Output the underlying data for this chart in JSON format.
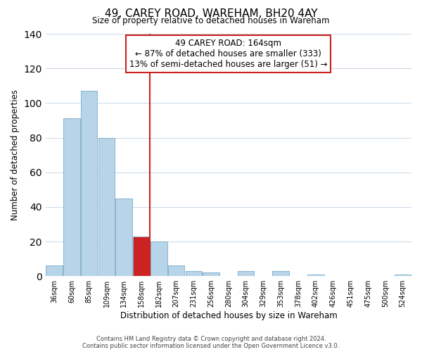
{
  "title": "49, CAREY ROAD, WAREHAM, BH20 4AY",
  "subtitle": "Size of property relative to detached houses in Wareham",
  "xlabel": "Distribution of detached houses by size in Wareham",
  "ylabel": "Number of detached properties",
  "bar_labels": [
    "36sqm",
    "60sqm",
    "85sqm",
    "109sqm",
    "134sqm",
    "158sqm",
    "182sqm",
    "207sqm",
    "231sqm",
    "256sqm",
    "280sqm",
    "304sqm",
    "329sqm",
    "353sqm",
    "378sqm",
    "402sqm",
    "426sqm",
    "451sqm",
    "475sqm",
    "500sqm",
    "524sqm"
  ],
  "bar_heights": [
    6,
    91,
    107,
    80,
    45,
    23,
    20,
    6,
    3,
    2,
    0,
    3,
    0,
    3,
    0,
    1,
    0,
    0,
    0,
    0,
    1
  ],
  "highlight_bar_index": 5,
  "highlight_color": "#cc2222",
  "normal_color": "#b8d4e8",
  "vline_index": 5,
  "ylim": [
    0,
    140
  ],
  "yticks": [
    0,
    20,
    40,
    60,
    80,
    100,
    120,
    140
  ],
  "annotation_title": "49 CAREY ROAD: 164sqm",
  "annotation_line1": "← 87% of detached houses are smaller (333)",
  "annotation_line2": "13% of semi-detached houses are larger (51) →",
  "footnote1": "Contains HM Land Registry data © Crown copyright and database right 2024.",
  "footnote2": "Contains public sector information licensed under the Open Government Licence v3.0."
}
